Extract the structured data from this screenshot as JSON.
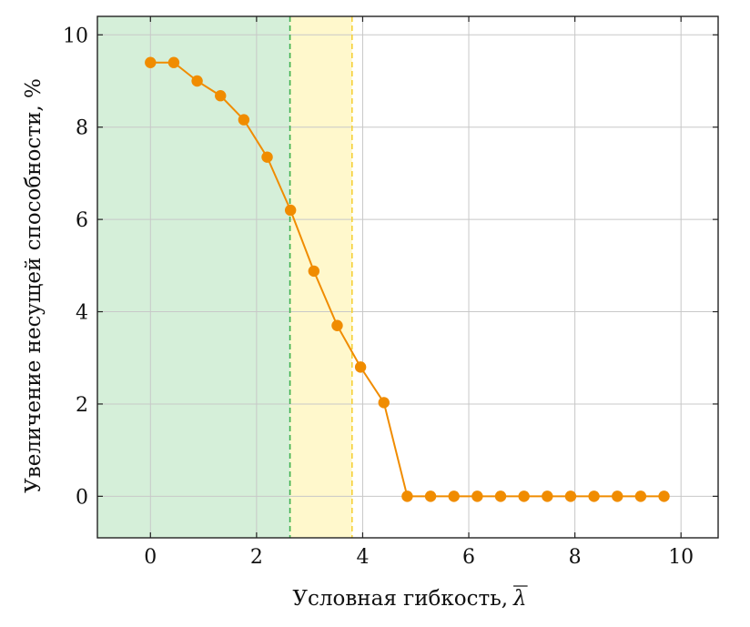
{
  "chart_data": {
    "type": "line",
    "title": "",
    "xlabel": "Условная гибкость,",
    "xlabel_symbol": "λ",
    "ylabel": "Увеличение несущей способности, %",
    "xlim": [
      -1,
      10.7
    ],
    "ylim": [
      -0.9,
      10.4
    ],
    "xticks": [
      "0",
      "2",
      "4",
      "6",
      "8",
      "10"
    ],
    "yticks": [
      "0",
      "2",
      "4",
      "6",
      "8",
      "10"
    ],
    "xtick_values": [
      0,
      2,
      4,
      6,
      8,
      10
    ],
    "ytick_values": [
      0,
      2,
      4,
      6,
      8,
      10
    ],
    "grid": true,
    "regions": [
      {
        "x_from": -1,
        "x_to": 2.63,
        "color": "#d5efd9",
        "boundary_color": "#3fb04f"
      },
      {
        "x_from": 2.63,
        "x_to": 3.8,
        "color": "#fff8cc",
        "boundary_color": "#f5d038"
      }
    ],
    "series": [
      {
        "color": "#f08c00",
        "x": [
          0,
          0.44,
          0.88,
          1.32,
          1.76,
          2.2,
          2.64,
          3.08,
          3.52,
          3.96,
          4.4,
          4.84,
          5.28,
          5.72,
          6.16,
          6.6,
          7.04,
          7.48,
          7.92,
          8.36,
          8.8,
          9.24,
          9.68
        ],
        "y": [
          9.4,
          9.4,
          9.0,
          8.68,
          8.16,
          7.35,
          6.2,
          4.88,
          3.7,
          2.8,
          2.03,
          0,
          0,
          0,
          0,
          0,
          0,
          0,
          0,
          0,
          0,
          0,
          0
        ]
      }
    ]
  }
}
